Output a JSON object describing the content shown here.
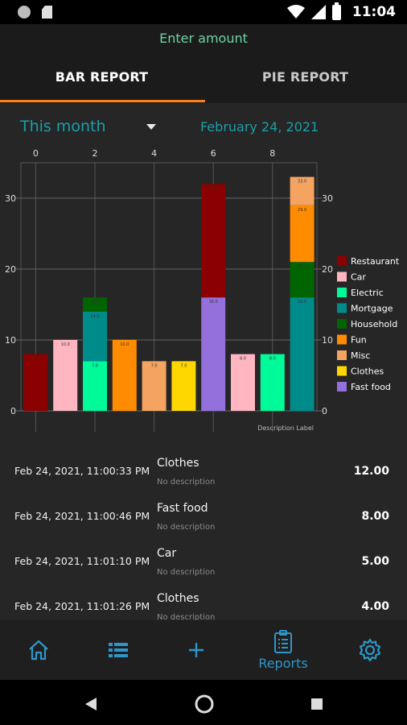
{
  "status": {
    "time": "11:04"
  },
  "app": {
    "title": "Enter amount"
  },
  "tabs": [
    {
      "label": "BAR REPORT",
      "active": true
    },
    {
      "label": "PIE REPORT",
      "active": false
    }
  ],
  "filter": {
    "period": "This month",
    "date": "February 24, 2021"
  },
  "chart_data": {
    "type": "bar",
    "stacked": true,
    "x_axis": {
      "position": "top",
      "range": [
        -0.5,
        9.5
      ],
      "ticks": [
        "0",
        "2",
        "4",
        "6",
        "8"
      ]
    },
    "y_axis": {
      "range": [
        0,
        35
      ],
      "ticks": [
        "0",
        "10",
        "20",
        "30"
      ],
      "both_sides": true
    },
    "grid": true,
    "legend_position": "right",
    "description_label": "Description Label",
    "legend": [
      {
        "name": "Restaurant",
        "color": "#8b0000"
      },
      {
        "name": "Car",
        "color": "#ffb6c1"
      },
      {
        "name": "Electric",
        "color": "#00fa9a"
      },
      {
        "name": "Mortgage",
        "color": "#008b8b"
      },
      {
        "name": "Household",
        "color": "#006400"
      },
      {
        "name": "Fun",
        "color": "#ff8c00"
      },
      {
        "name": "Misc",
        "color": "#f4a460"
      },
      {
        "name": "Clothes",
        "color": "#ffd700"
      },
      {
        "name": "Fast food",
        "color": "#9370db"
      }
    ],
    "bars": [
      {
        "x": 0,
        "segments": [
          {
            "category": "Restaurant",
            "value": 8
          }
        ]
      },
      {
        "x": 1,
        "segments": [
          {
            "category": "Car",
            "value": 10
          }
        ]
      },
      {
        "x": 2,
        "segments": [
          {
            "category": "Electric",
            "value": 7
          },
          {
            "category": "Mortgage",
            "value": 7
          },
          {
            "category": "Household",
            "value": 2
          }
        ]
      },
      {
        "x": 3,
        "segments": [
          {
            "category": "Fun",
            "value": 10
          }
        ]
      },
      {
        "x": 4,
        "segments": [
          {
            "category": "Misc",
            "value": 7
          }
        ]
      },
      {
        "x": 5,
        "segments": [
          {
            "category": "Clothes",
            "value": 7
          }
        ]
      },
      {
        "x": 6,
        "segments": [
          {
            "category": "Fast food",
            "value": 16
          },
          {
            "category": "Restaurant",
            "value": 16
          }
        ]
      },
      {
        "x": 7,
        "segments": [
          {
            "category": "Car",
            "value": 8
          }
        ]
      },
      {
        "x": 8,
        "segments": [
          {
            "category": "Electric",
            "value": 8
          }
        ]
      },
      {
        "x": 9,
        "segments": [
          {
            "category": "Mortgage",
            "value": 16
          },
          {
            "category": "Household",
            "value": 5
          },
          {
            "category": "Fun",
            "value": 8
          },
          {
            "category": "Misc",
            "value": 4
          }
        ]
      }
    ]
  },
  "transactions": [
    {
      "time": "Feb 24, 2021, 11:00:33 PM",
      "category": "Clothes",
      "description": "No description",
      "amount": "12.00"
    },
    {
      "time": "Feb 24, 2021, 11:00:46 PM",
      "category": "Fast food",
      "description": "No description",
      "amount": "8.00"
    },
    {
      "time": "Feb 24, 2021, 11:01:10 PM",
      "category": "Car",
      "description": "No description",
      "amount": "5.00"
    },
    {
      "time": "Feb 24, 2021, 11:01:26 PM",
      "category": "Clothes",
      "description": "No description",
      "amount": "4.00"
    }
  ],
  "nav": {
    "items": [
      {
        "icon": "home-icon",
        "label": ""
      },
      {
        "icon": "list-icon",
        "label": ""
      },
      {
        "icon": "add-icon",
        "label": ""
      },
      {
        "icon": "reports-icon",
        "label": "Reports",
        "active": true
      },
      {
        "icon": "settings-icon",
        "label": ""
      }
    ],
    "accent": "#2e96c8"
  }
}
